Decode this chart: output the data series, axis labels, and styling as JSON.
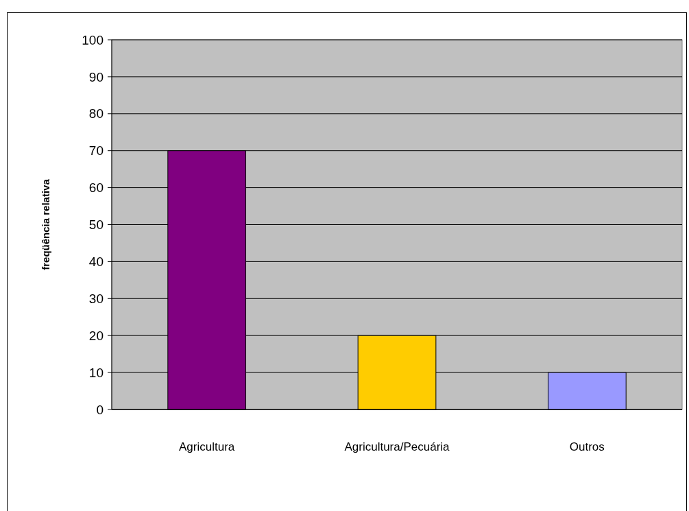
{
  "chart_data": {
    "type": "bar",
    "ylabel": "freqüência relativa",
    "categories": [
      "Agricultura",
      "Agricultura/Pecuária",
      "Outros"
    ],
    "values": [
      70,
      20,
      10
    ],
    "colors": [
      "#800080",
      "#ffcc00",
      "#9999ff"
    ],
    "ylim": [
      0,
      100
    ],
    "yticks": [
      0,
      10,
      20,
      30,
      40,
      50,
      60,
      70,
      80,
      90,
      100
    ],
    "grid": "y"
  }
}
